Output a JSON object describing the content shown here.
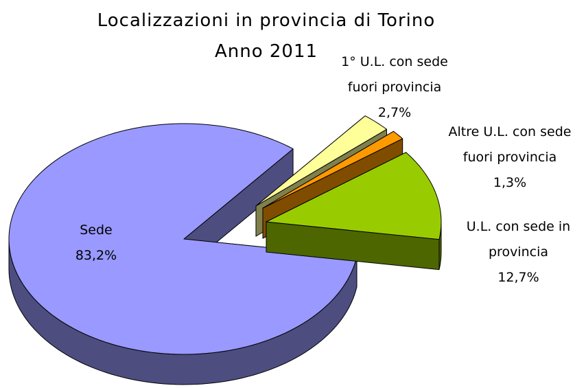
{
  "chart_data": {
    "type": "pie",
    "title": "Localizzazioni in provincia di Torino",
    "subtitle": "Anno 2011",
    "categories": [
      "Sede",
      "U.L. con sede in provincia",
      "Altre U.L. con sede fuori provincia",
      "1° U.L. con sede fuori provincia"
    ],
    "values": [
      83.2,
      12.7,
      1.3,
      2.7
    ],
    "value_labels": [
      "83,2%",
      "12,7%",
      "1,3%",
      "2,7%"
    ],
    "colors": [
      "#9999ff",
      "#99cc00",
      "#ff9900",
      "#ffff99"
    ]
  }
}
